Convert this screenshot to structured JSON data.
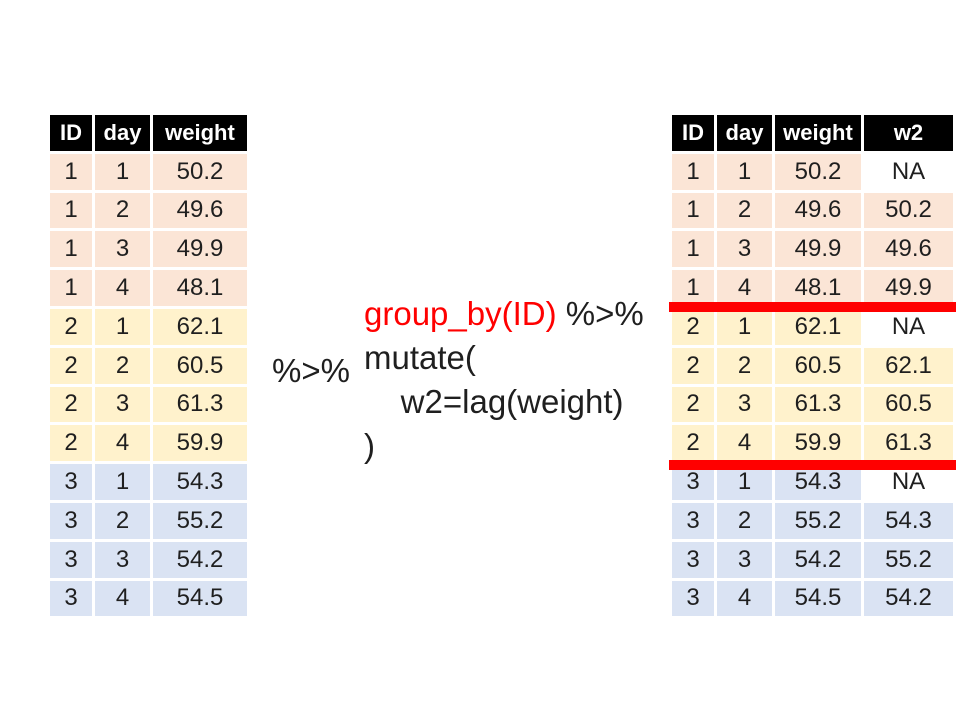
{
  "colors": {
    "slide_bg": "#ffffff",
    "header_bg": "#000000",
    "header_text": "#ffffff",
    "cell_text": "#1f1f1f",
    "group1_bg": "#fbe5d6",
    "group2_bg": "#fff2cc",
    "group3_bg": "#dae3f3",
    "na_bg": "#ffffff",
    "separator_red": "#ff0000",
    "code_red": "#ff0000",
    "code_black": "#1f1f1f"
  },
  "left_table": {
    "headers": [
      "ID",
      "day",
      "weight"
    ],
    "rows": [
      {
        "group": "g1",
        "cells": [
          "1",
          "1",
          "50.2"
        ]
      },
      {
        "group": "g1",
        "cells": [
          "1",
          "2",
          "49.6"
        ]
      },
      {
        "group": "g1",
        "cells": [
          "1",
          "3",
          "49.9"
        ]
      },
      {
        "group": "g1",
        "cells": [
          "1",
          "4",
          "48.1"
        ]
      },
      {
        "group": "g2",
        "cells": [
          "2",
          "1",
          "62.1"
        ]
      },
      {
        "group": "g2",
        "cells": [
          "2",
          "2",
          "60.5"
        ]
      },
      {
        "group": "g2",
        "cells": [
          "2",
          "3",
          "61.3"
        ]
      },
      {
        "group": "g2",
        "cells": [
          "2",
          "4",
          "59.9"
        ]
      },
      {
        "group": "g3",
        "cells": [
          "3",
          "1",
          "54.3"
        ]
      },
      {
        "group": "g3",
        "cells": [
          "3",
          "2",
          "55.2"
        ]
      },
      {
        "group": "g3",
        "cells": [
          "3",
          "3",
          "54.2"
        ]
      },
      {
        "group": "g3",
        "cells": [
          "3",
          "4",
          "54.5"
        ]
      }
    ]
  },
  "right_table": {
    "headers": [
      "ID",
      "day",
      "weight",
      "w2"
    ],
    "rows": [
      {
        "group": "g1",
        "cells": [
          "1",
          "1",
          "50.2",
          "NA"
        ]
      },
      {
        "group": "g1",
        "cells": [
          "1",
          "2",
          "49.6",
          "50.2"
        ]
      },
      {
        "group": "g1",
        "cells": [
          "1",
          "3",
          "49.9",
          "49.6"
        ]
      },
      {
        "group": "g1",
        "cells": [
          "1",
          "4",
          "48.1",
          "49.9"
        ]
      },
      {
        "group": "g2",
        "cells": [
          "2",
          "1",
          "62.1",
          "NA"
        ]
      },
      {
        "group": "g2",
        "cells": [
          "2",
          "2",
          "60.5",
          "62.1"
        ]
      },
      {
        "group": "g2",
        "cells": [
          "2",
          "3",
          "61.3",
          "60.5"
        ]
      },
      {
        "group": "g2",
        "cells": [
          "2",
          "4",
          "59.9",
          "61.3"
        ]
      },
      {
        "group": "g3",
        "cells": [
          "3",
          "1",
          "54.3",
          "NA"
        ]
      },
      {
        "group": "g3",
        "cells": [
          "3",
          "2",
          "55.2",
          "54.3"
        ]
      },
      {
        "group": "g3",
        "cells": [
          "3",
          "3",
          "54.2",
          "55.2"
        ]
      },
      {
        "group": "g3",
        "cells": [
          "3",
          "4",
          "54.5",
          "54.2"
        ]
      }
    ]
  },
  "code": {
    "standalone_pipe": "%>%",
    "lines": [
      {
        "segments": [
          {
            "text": "group_by(ID)",
            "color": "red"
          },
          {
            "text": " %>%",
            "color": "black"
          }
        ]
      },
      {
        "segments": [
          {
            "text": "mutate(",
            "color": "black"
          }
        ]
      },
      {
        "segments": [
          {
            "text": "    w2=lag(weight)",
            "color": "black"
          }
        ]
      },
      {
        "segments": [
          {
            "text": ")",
            "color": "black"
          }
        ]
      }
    ]
  }
}
